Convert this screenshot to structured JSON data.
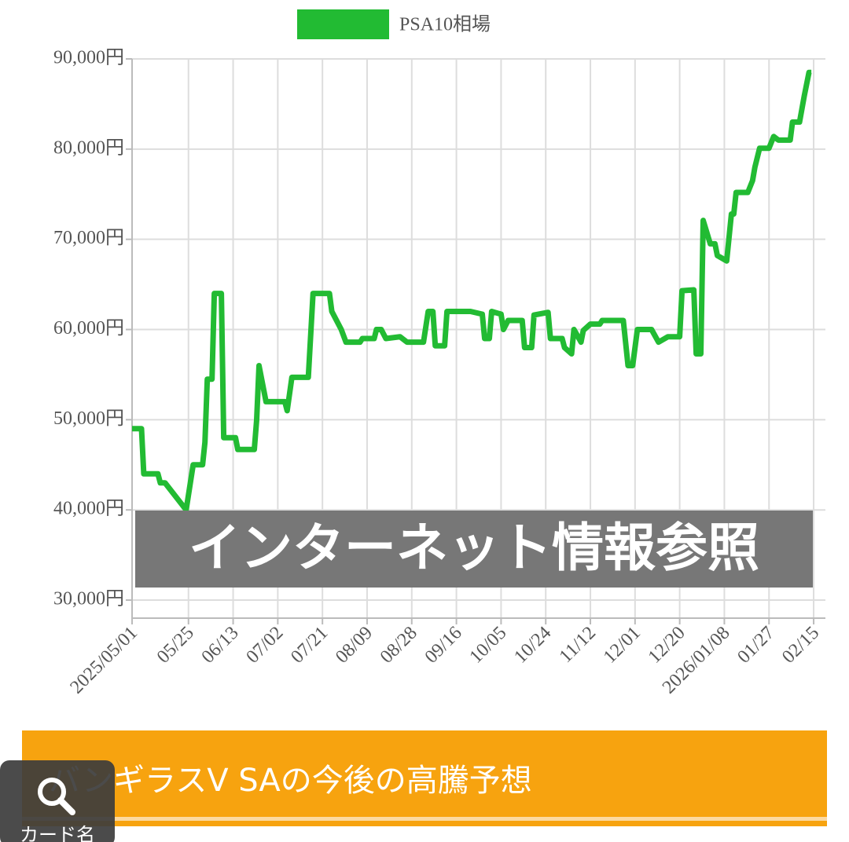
{
  "chart_data": {
    "type": "line",
    "legend": "top",
    "grid": true,
    "series": [
      {
        "name": "PSA10相場",
        "color": "#22bb33",
        "x": [
          "2025-05-01",
          "2025-05-05",
          "2025-05-06",
          "2025-05-12",
          "2025-05-13",
          "2025-05-15",
          "2025-05-24",
          "2025-05-27",
          "2025-05-31",
          "2025-06-01",
          "2025-06-02",
          "2025-06-04",
          "2025-06-05",
          "2025-06-08",
          "2025-06-09",
          "2025-06-14",
          "2025-06-15",
          "2025-06-22",
          "2025-06-23",
          "2025-06-24",
          "2025-06-27",
          "2025-07-05",
          "2025-07-06",
          "2025-07-08",
          "2025-07-15",
          "2025-07-17",
          "2025-07-24",
          "2025-07-25",
          "2025-07-27",
          "2025-07-29",
          "2025-07-31",
          "2025-08-06",
          "2025-08-07",
          "2025-08-12",
          "2025-08-13",
          "2025-08-15",
          "2025-08-17",
          "2025-08-23",
          "2025-08-26",
          "2025-09-02",
          "2025-09-04",
          "2025-09-06",
          "2025-09-07",
          "2025-09-11",
          "2025-09-12",
          "2025-09-22",
          "2025-09-27",
          "2025-09-28",
          "2025-09-30",
          "2025-10-01",
          "2025-10-05",
          "2025-10-06",
          "2025-10-08",
          "2025-10-14",
          "2025-10-15",
          "2025-10-18",
          "2025-10-19",
          "2025-10-25",
          "2025-10-26",
          "2025-10-31",
          "2025-11-01",
          "2025-11-04",
          "2025-11-05",
          "2025-11-08",
          "2025-11-09",
          "2025-11-12",
          "2025-11-16",
          "2025-11-17",
          "2025-11-26",
          "2025-11-28",
          "2025-11-30",
          "2025-12-02",
          "2025-12-08",
          "2025-12-11",
          "2025-12-15",
          "2025-12-20",
          "2025-12-21",
          "2025-12-26",
          "2025-12-27",
          "2025-12-29",
          "2025-12-30",
          "2026-01-02",
          "2026-01-04",
          "2026-01-05",
          "2026-01-09",
          "2026-01-11",
          "2026-01-12",
          "2026-01-13",
          "2026-01-18",
          "2026-01-20",
          "2026-01-21",
          "2026-01-23",
          "2026-01-27",
          "2026-01-29",
          "2026-01-31",
          "2026-02-05",
          "2026-02-06",
          "2026-02-09",
          "2026-02-11",
          "2026-02-13",
          "2026-02-14"
        ],
        "values": [
          49000,
          49000,
          44000,
          44000,
          43000,
          43000,
          40000,
          45000,
          45000,
          47500,
          54500,
          54500,
          64000,
          64000,
          48000,
          48000,
          46700,
          46700,
          50000,
          56000,
          52000,
          52000,
          51000,
          54700,
          54700,
          64000,
          64000,
          62000,
          61000,
          60000,
          58600,
          58600,
          59000,
          59000,
          60000,
          60000,
          59000,
          59200,
          58600,
          58600,
          62000,
          62000,
          58200,
          58200,
          62000,
          62000,
          61700,
          59000,
          59000,
          62000,
          61700,
          60000,
          61000,
          61000,
          58000,
          58000,
          61600,
          61900,
          59000,
          59000,
          58000,
          57300,
          60000,
          58600,
          59900,
          60600,
          60600,
          61000,
          61000,
          56000,
          56000,
          60000,
          60000,
          58600,
          59200,
          59200,
          64300,
          64400,
          57300,
          57300,
          72100,
          69500,
          69500,
          68200,
          67600,
          72800,
          72800,
          75200,
          75200,
          76500,
          78000,
          80100,
          80100,
          81400,
          81000,
          81000,
          83000,
          83000,
          85900,
          88500,
          88500
        ]
      }
    ],
    "xlim": [
      "2025-05-01",
      "2026-02-20"
    ],
    "xticks": [
      {
        "value": "2025-05-01",
        "label": "2025/05/01"
      },
      {
        "value": "2025-05-25",
        "label": "05/25"
      },
      {
        "value": "2025-06-13",
        "label": "06/13"
      },
      {
        "value": "2025-07-02",
        "label": "07/02"
      },
      {
        "value": "2025-07-21",
        "label": "07/21"
      },
      {
        "value": "2025-08-09",
        "label": "08/09"
      },
      {
        "value": "2025-08-28",
        "label": "08/28"
      },
      {
        "value": "2025-09-16",
        "label": "09/16"
      },
      {
        "value": "2025-10-05",
        "label": "10/05"
      },
      {
        "value": "2025-10-24",
        "label": "10/24"
      },
      {
        "value": "2025-11-12",
        "label": "11/12"
      },
      {
        "value": "2025-12-01",
        "label": "12/01"
      },
      {
        "value": "2025-12-20",
        "label": "12/20"
      },
      {
        "value": "2026-01-08",
        "label": "2026/01/08"
      },
      {
        "value": "2026-01-27",
        "label": "01/27"
      },
      {
        "value": "2026-02-15",
        "label": "02/15"
      }
    ],
    "ylim": [
      28000,
      90000
    ],
    "yticks": [
      {
        "value": 30000,
        "label": "30,000円"
      },
      {
        "value": 40000,
        "label": "40,000円"
      },
      {
        "value": 50000,
        "label": "50,000円"
      },
      {
        "value": 60000,
        "label": "60,000円"
      },
      {
        "value": 70000,
        "label": "70,000円"
      },
      {
        "value": 80000,
        "label": "80,000円"
      },
      {
        "value": 90000,
        "label": "90,000円"
      }
    ]
  },
  "overlay": {
    "text": "インターネット情報参照"
  },
  "section_heading": {
    "text": "バンギラスV SAの今後の高騰予想"
  },
  "search_button": {
    "label": "カード名"
  }
}
